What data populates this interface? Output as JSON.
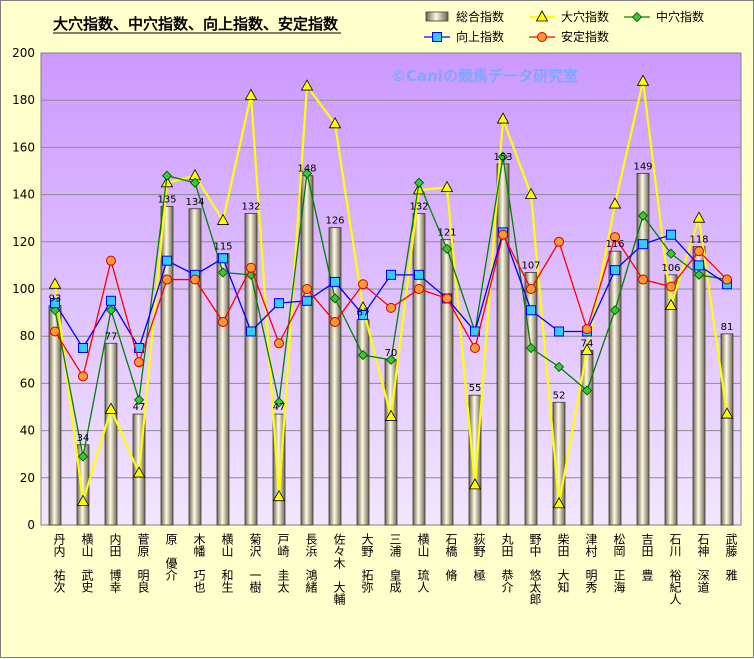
{
  "chart_data": {
    "type": "bar",
    "title": "大穴指数、中穴指数、向上指数、安定指数",
    "watermark": "©Caniの競馬データ研究室",
    "ylim": [
      0,
      200
    ],
    "yticks": [
      0,
      20,
      40,
      60,
      80,
      100,
      120,
      140,
      160,
      180,
      200
    ],
    "grid": true,
    "legend_position": "top-right",
    "plot_background": [
      "#cc99ff",
      "#f2e6ff"
    ],
    "categories": [
      "丹内　祐次",
      "横山　武史",
      "内田　博幸",
      "菅原　明良",
      "原　優介",
      "木幡　巧也",
      "横山　和生",
      "菊沢　一樹",
      "戸崎　圭太",
      "長浜　鴻緒",
      "佐々木　大輔",
      "大野　拓弥",
      "三浦　皇成",
      "横山　琉人",
      "石橋　脩",
      "荻野　極",
      "丸田　恭介",
      "野中　悠太郎",
      "柴田　大知",
      "津村　明秀",
      "松岡　正海",
      "吉田　豊",
      "石川　裕紀人",
      "石神　深道",
      "武藤　雅"
    ],
    "series": [
      {
        "name": "総合指数",
        "type": "bar",
        "color": "#c8bfa0",
        "values": [
          93,
          34,
          77,
          47,
          135,
          134,
          115,
          132,
          47,
          148,
          126,
          87,
          70,
          132,
          121,
          55,
          153,
          107,
          52,
          74,
          116,
          149,
          106,
          118,
          81
        ]
      },
      {
        "name": "大穴指数",
        "type": "line",
        "color": "#ffff00",
        "marker": "triangle",
        "values": [
          102,
          10,
          49,
          22,
          145,
          148,
          129,
          182,
          12,
          186,
          170,
          92,
          46,
          142,
          143,
          17,
          172,
          140,
          9,
          74,
          136,
          188,
          93,
          130,
          47
        ]
      },
      {
        "name": "中穴指数",
        "type": "line",
        "color": "#008000",
        "marker": "diamond",
        "values": [
          91,
          29,
          91,
          53,
          148,
          145,
          107,
          106,
          52,
          149,
          96,
          72,
          70,
          145,
          117,
          82,
          156,
          75,
          67,
          57,
          91,
          131,
          115,
          106,
          104
        ]
      },
      {
        "name": "向上指数",
        "type": "line",
        "color": "#0000ff",
        "marker": "square",
        "values": [
          94,
          75,
          95,
          75,
          112,
          106,
          113,
          82,
          94,
          95,
          103,
          89,
          106,
          106,
          96,
          82,
          124,
          91,
          82,
          82,
          108,
          119,
          123,
          110,
          102
        ]
      },
      {
        "name": "安定指数",
        "type": "line",
        "color": "#ff0000",
        "marker": "circle",
        "values": [
          82,
          63,
          112,
          69,
          104,
          104,
          86,
          109,
          77,
          100,
          86,
          102,
          92,
          100,
          96,
          75,
          123,
          100,
          120,
          83,
          122,
          104,
          101,
          116,
          104
        ]
      }
    ]
  }
}
